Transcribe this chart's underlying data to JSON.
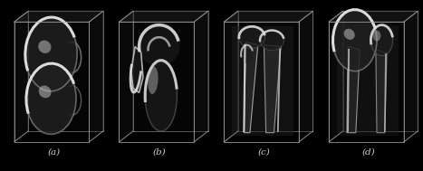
{
  "figure_width": 4.67,
  "figure_height": 1.89,
  "dpi": 100,
  "background_color": "#000000",
  "box_color": "#aaaaaa",
  "labels": [
    "(a)",
    "(b)",
    "(c)",
    "(d)"
  ],
  "label_color": "#cccccc",
  "label_fontsize": 7.5
}
